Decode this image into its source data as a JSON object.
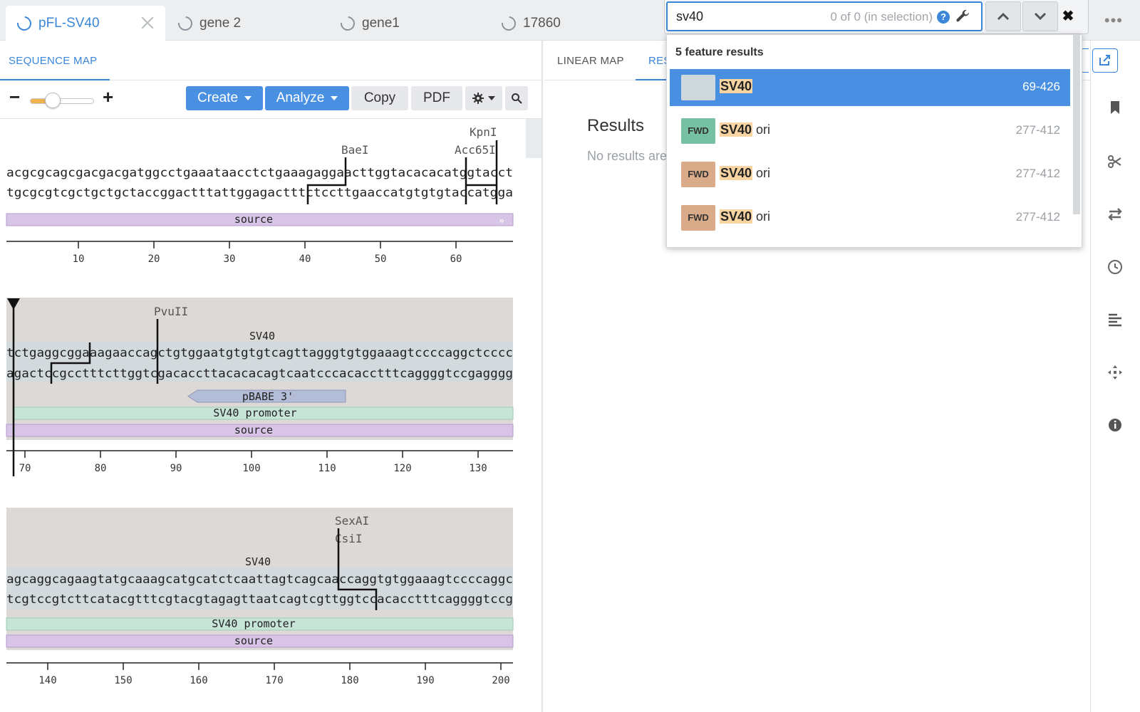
{
  "tabs": [
    {
      "label": "pFL-SV40",
      "active": true
    },
    {
      "label": "gene 2",
      "active": false
    },
    {
      "label": "gene1",
      "active": false
    },
    {
      "label": "17860",
      "active": false
    }
  ],
  "find": {
    "query": "sv40",
    "count": "0 of 0 (in selection)",
    "help": "?",
    "close": "✖"
  },
  "left_panel": {
    "tab_label": "SEQUENCE MAP",
    "toolbar": {
      "create_label": "Create",
      "analyze_label": "Analyze",
      "copy_label": "Copy",
      "pdf_label": "PDF",
      "zoom_level": 0.25
    }
  },
  "right_panel": {
    "tabs": [
      "LINEAR MAP",
      "RESULTS"
    ],
    "results_title": "Results",
    "results_empty": "No results are"
  },
  "dropdown": {
    "header": "5 feature results",
    "rows": [
      {
        "badge": "",
        "match": "SV40",
        "rest": "",
        "range": "69-426",
        "color": "#cfd8dc",
        "selected": true
      },
      {
        "badge": "FWD",
        "match": "SV40",
        "rest": " ori",
        "range": "277-412",
        "color": "#76c0a3",
        "selected": false
      },
      {
        "badge": "FWD",
        "match": "SV40",
        "rest": " ori",
        "range": "277-412",
        "color": "#d9ab88",
        "selected": false
      },
      {
        "badge": "FWD",
        "match": "SV40",
        "rest": " ori",
        "range": "277-412",
        "color": "#d9ab88",
        "selected": false
      }
    ]
  },
  "sequence_map": {
    "rows": [
      {
        "top_strand": "acgcgcagcgacgacgatggcctgaaataacctctgaaagaggaacttggtacacacatggtacct",
        "bottom_strand": "tgcgcgtcgctgctgctaccggactttattggagactttctccttgaaccatgtgtgtaccatgga",
        "enzymes": [
          "BaeI",
          "KpnI",
          "Acc65I"
        ],
        "features": [
          "source"
        ],
        "ticks": [
          "10",
          "20",
          "30",
          "40",
          "50",
          "60"
        ]
      },
      {
        "top_strand": "tctgaggcggaaagaaccagctgtggaatgtgtgtcagttagggtgtggaaagtccccaggctcccc",
        "bottom_strand": "agactccgcctttcttggtcgacaccttacacacagtcaatcccacacctttcaggggtccgagggg",
        "enzymes": [
          "PvuII"
        ],
        "feature_label": "SV40",
        "features": [
          "pBABE 3'",
          "SV40 promoter",
          "source"
        ],
        "ticks": [
          "70",
          "80",
          "90",
          "100",
          "110",
          "120",
          "130"
        ]
      },
      {
        "top_strand": "agcaggcagaagtatgcaaagcatgcatctcaattagtcagcaaccaggtgtggaaagtccccaggc",
        "bottom_strand": "tcgtccgtcttcatacgtttcgtacgtagagttaatcagtcgttggtccacacctttcaggggtccg",
        "enzymes": [
          "SexAI",
          "CsiI"
        ],
        "feature_label": "SV40",
        "features": [
          "SV40 promoter",
          "source"
        ],
        "ticks": [
          "140",
          "150",
          "160",
          "170",
          "180",
          "190",
          "200"
        ]
      }
    ]
  },
  "colors": {
    "accent": "#4a90e2",
    "source_feature": "#d7c4e6",
    "promoter_feature": "#c7e4d8",
    "pbabe_feature": "#b3bdd8",
    "selection_bg": "#ddd9d6"
  },
  "rail_icons": [
    "bookmark-icon",
    "scissors-icon",
    "swap-icon",
    "history-icon",
    "align-icon",
    "move-icon",
    "info-icon"
  ]
}
